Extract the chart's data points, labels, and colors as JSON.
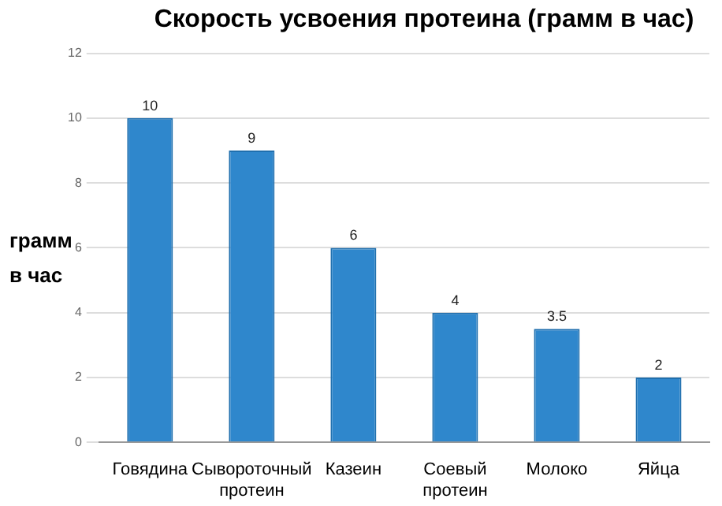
{
  "chart_data": {
    "type": "bar",
    "title": "Скорость усвоения протеина (грамм в час)",
    "ylabel": "грамм в час",
    "categories": [
      "Говядина",
      "Сывороточный протеин",
      "Казеин",
      "Соевый протеин",
      "Молоко",
      "Яйца"
    ],
    "values": [
      10,
      9,
      6,
      4,
      3.5,
      2
    ],
    "color": "#2f87cc",
    "ylim": [
      0,
      12
    ],
    "yticks": [
      0,
      2,
      4,
      6,
      8,
      10,
      12
    ],
    "grid": "y",
    "data_labels": true,
    "legend": false
  }
}
